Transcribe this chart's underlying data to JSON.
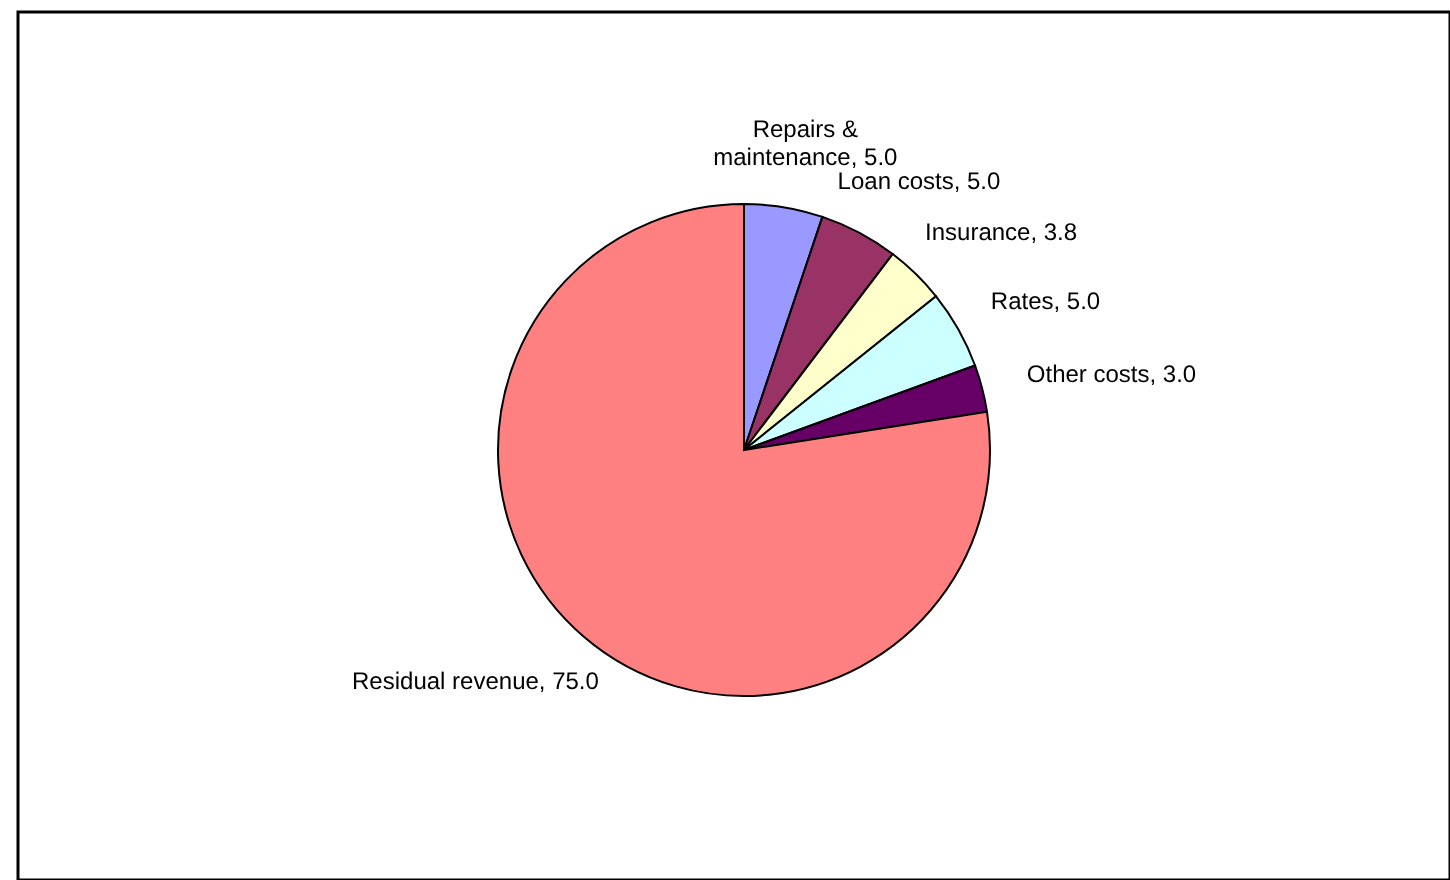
{
  "chart_data": {
    "type": "pie",
    "categories": [
      "Repairs & maintenance",
      "Loan costs",
      "Insurance",
      "Rates",
      "Other costs",
      "Residual revenue"
    ],
    "values": [
      5.0,
      5.0,
      3.8,
      5.0,
      3.0,
      75.0
    ],
    "value_labels": [
      "5.0",
      "5.0",
      "3.8",
      "5.0",
      "3.0",
      "75.0"
    ],
    "colors": [
      "#9999ff",
      "#993366",
      "#ffffcc",
      "#ccffff",
      "#660066",
      "#ff8080"
    ]
  }
}
